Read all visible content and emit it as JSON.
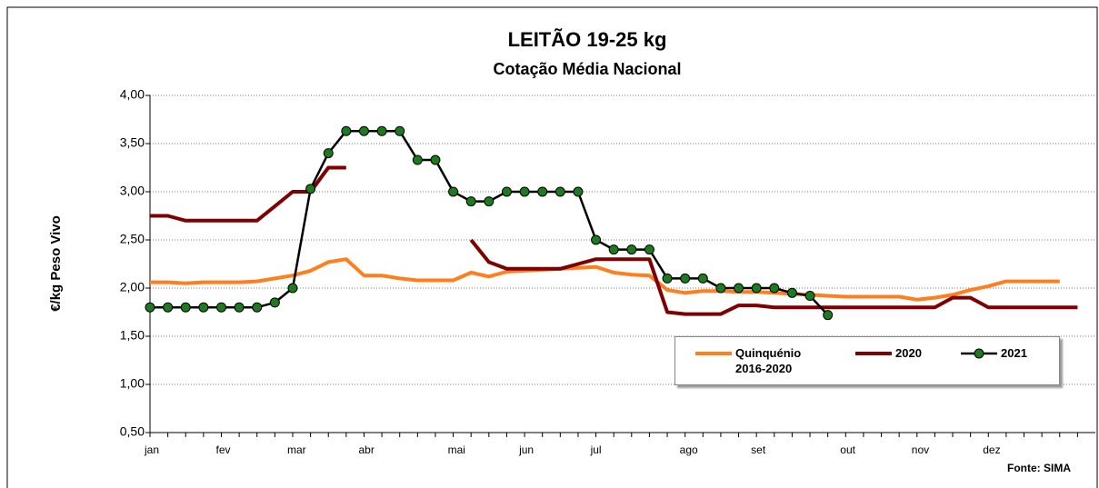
{
  "chart_data": {
    "type": "line",
    "title": "LEITÃO 19-25 kg",
    "subtitle": "Cotação Média Nacional",
    "y_label": "€/kg Peso Vivo",
    "source": "Fonte: SIMA",
    "categories": [
      "jan",
      null,
      null,
      null,
      "fev",
      null,
      null,
      null,
      "mar",
      null,
      null,
      null,
      "abr",
      null,
      null,
      null,
      null,
      "mai",
      null,
      null,
      null,
      "jun",
      null,
      null,
      null,
      "jul",
      null,
      null,
      null,
      null,
      "ago",
      null,
      null,
      null,
      "set",
      null,
      null,
      null,
      null,
      "out",
      null,
      null,
      null,
      "nov",
      null,
      null,
      null,
      "dez",
      null,
      null,
      null,
      null,
      null
    ],
    "ylim": [
      0.5,
      4.0
    ],
    "yticks": [
      {
        "value": 0.5,
        "label": "0,50"
      },
      {
        "value": 1.0,
        "label": "1,00"
      },
      {
        "value": 1.5,
        "label": "1,50"
      },
      {
        "value": 2.0,
        "label": "2,00"
      },
      {
        "value": 2.5,
        "label": "2,50"
      },
      {
        "value": 3.0,
        "label": "3,00"
      },
      {
        "value": 3.5,
        "label": "3,50"
      },
      {
        "value": 4.0,
        "label": "4,00"
      }
    ],
    "grid": true,
    "legend": "bottom-right",
    "series": [
      {
        "name": "Quinquénio 2016-2020",
        "color": "#ff7f1e",
        "markers": false,
        "values": [
          2.06,
          2.06,
          2.05,
          2.06,
          2.06,
          2.06,
          2.07,
          2.1,
          2.13,
          2.18,
          2.27,
          2.3,
          2.13,
          2.13,
          2.1,
          2.08,
          2.08,
          2.08,
          2.16,
          2.12,
          2.17,
          2.18,
          2.19,
          2.2,
          2.21,
          2.22,
          2.16,
          2.14,
          2.13,
          1.98,
          1.95,
          1.97,
          1.97,
          1.96,
          1.96,
          1.95,
          1.94,
          1.93,
          1.92,
          1.91,
          1.91,
          1.91,
          1.91,
          1.88,
          1.9,
          1.93,
          1.98,
          2.02,
          2.07,
          2.07,
          2.07,
          2.07,
          null
        ]
      },
      {
        "name": "2020",
        "color": "#7f0000",
        "markers": false,
        "values": [
          2.75,
          2.75,
          2.7,
          2.7,
          2.7,
          2.7,
          2.7,
          2.85,
          3.0,
          3.0,
          3.25,
          3.25,
          null,
          null,
          null,
          null,
          null,
          null,
          2.5,
          2.27,
          2.2,
          2.2,
          2.2,
          2.2,
          2.25,
          2.3,
          2.3,
          2.3,
          2.3,
          1.75,
          1.73,
          1.73,
          1.73,
          1.82,
          1.82,
          1.8,
          1.8,
          1.8,
          1.8,
          1.8,
          1.8,
          1.8,
          1.8,
          1.8,
          1.8,
          1.9,
          1.9,
          1.8,
          1.8,
          1.8,
          1.8,
          1.8,
          1.8
        ]
      },
      {
        "name": "2021",
        "color": "#000000",
        "marker_color": "#1e7a1e",
        "markers": true,
        "values": [
          1.8,
          1.8,
          1.8,
          1.8,
          1.8,
          1.8,
          1.8,
          1.85,
          2.0,
          3.03,
          3.4,
          3.63,
          3.63,
          3.63,
          3.63,
          3.33,
          3.33,
          3.0,
          2.9,
          2.9,
          3.0,
          3.0,
          3.0,
          3.0,
          3.0,
          2.5,
          2.4,
          2.4,
          2.4,
          2.1,
          2.1,
          2.1,
          2.0,
          2.0,
          2.0,
          2.0,
          1.95,
          1.92,
          1.72,
          null,
          null,
          null,
          null,
          null,
          null,
          null,
          null,
          null,
          null,
          null,
          null,
          null,
          null
        ]
      }
    ]
  }
}
